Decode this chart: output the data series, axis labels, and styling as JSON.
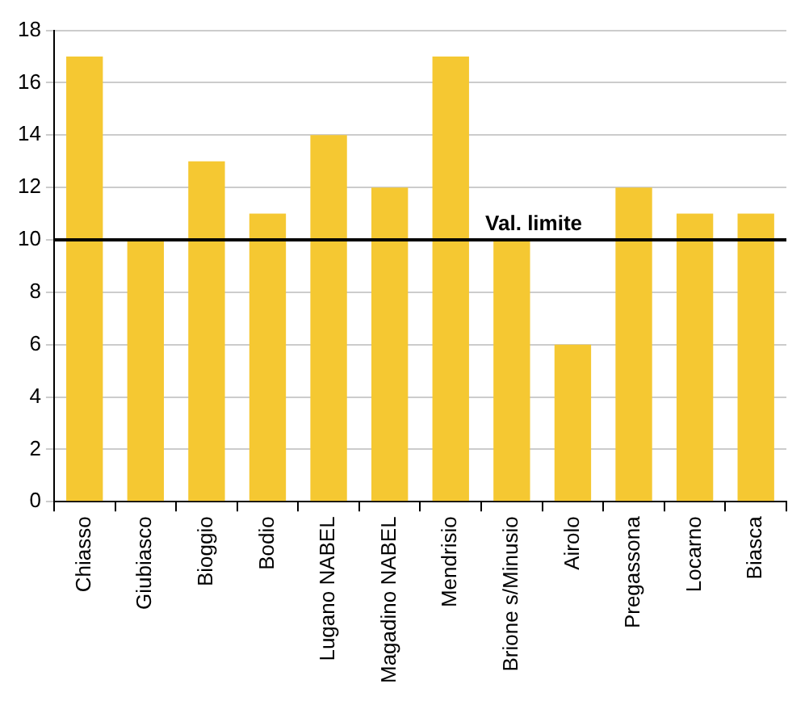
{
  "chart_data": {
    "type": "bar",
    "categories": [
      "Chiasso",
      "Giubiasco",
      "Bioggio",
      "Bodio",
      "Lugano NABEL",
      "Magadino NABEL",
      "Mendrisio",
      "Brione s/Minusio",
      "Airolo",
      "Pregassona",
      "Locarno",
      "Biasca"
    ],
    "values": [
      17,
      10,
      13,
      11,
      14,
      12,
      17,
      10,
      6,
      12,
      11,
      11
    ],
    "color": "#f5c832",
    "ylim": [
      0,
      18
    ],
    "yticks": [
      0,
      2,
      4,
      6,
      8,
      10,
      12,
      14,
      16,
      18
    ],
    "grid": "y",
    "ref_lines": [
      {
        "axis": "y",
        "value": 10,
        "label": "Val. limite",
        "color": "#000000"
      }
    ]
  }
}
